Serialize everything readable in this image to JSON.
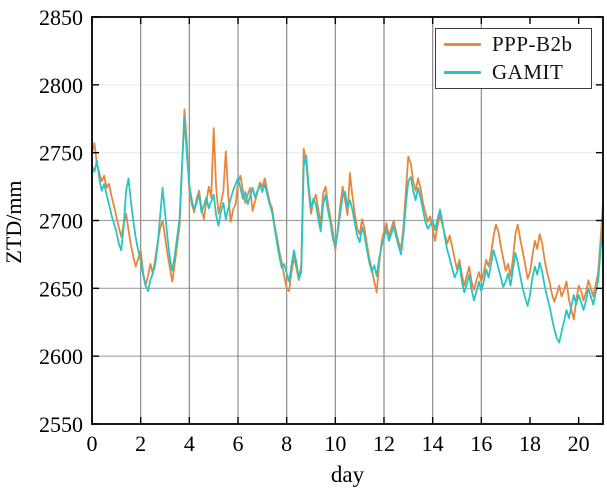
{
  "axes": {
    "xlabel": "day",
    "ylabel": "ZTD/mm",
    "x_ticks": [
      0,
      2,
      4,
      6,
      8,
      10,
      12,
      14,
      16,
      18,
      20
    ],
    "y_ticks": [
      2550,
      2600,
      2650,
      2700,
      2750,
      2800,
      2850
    ],
    "xlim": [
      0,
      21
    ],
    "ylim": [
      2550,
      2850
    ]
  },
  "grid": {
    "vertical_at_days": [
      2,
      4,
      6,
      8,
      10,
      12,
      14,
      16
    ],
    "horizontal_dark_at": [
      2600,
      2650,
      2700
    ],
    "horizontal_light_at": [
      2750,
      2800
    ],
    "vertical_color": "#8c8c8c",
    "horizontal_dark_color": "#a3a3a3",
    "horizontal_light_color": "#ebebeb"
  },
  "legend": {
    "position": "top-right",
    "entries": [
      {
        "label": "PPP-B2b",
        "color": "#E8873C"
      },
      {
        "label": "GAMIT",
        "color": "#2BC4C4"
      }
    ]
  },
  "chart_data": {
    "type": "line",
    "title": "",
    "xlabel": "day",
    "ylabel": "ZTD/mm",
    "xlim": [
      0,
      21
    ],
    "ylim": [
      2550,
      2850
    ],
    "grid": "on",
    "legend_position": "top-right",
    "x_start": 0,
    "x_step": 0.1,
    "series": [
      {
        "name": "PPP-B2b",
        "color": "#E8873C",
        "values": [
          2750,
          2757,
          2742,
          2735,
          2729,
          2733,
          2724,
          2727,
          2718,
          2711,
          2703,
          2695,
          2688,
          2697,
          2705,
          2693,
          2682,
          2673,
          2666,
          2672,
          2678,
          2662,
          2652,
          2659,
          2668,
          2661,
          2672,
          2684,
          2694,
          2700,
          2688,
          2676,
          2665,
          2655,
          2668,
          2682,
          2696,
          2738,
          2782,
          2757,
          2722,
          2712,
          2706,
          2716,
          2722,
          2709,
          2701,
          2714,
          2725,
          2717,
          2768,
          2725,
          2705,
          2713,
          2722,
          2751,
          2718,
          2699,
          2708,
          2712,
          2728,
          2733,
          2722,
          2713,
          2719,
          2724,
          2707,
          2714,
          2721,
          2728,
          2725,
          2731,
          2722,
          2714,
          2709,
          2697,
          2688,
          2677,
          2669,
          2659,
          2650,
          2648,
          2662,
          2673,
          2665,
          2656,
          2668,
          2753,
          2743,
          2722,
          2705,
          2714,
          2719,
          2708,
          2697,
          2720,
          2725,
          2712,
          2702,
          2691,
          2678,
          2694,
          2710,
          2725,
          2715,
          2704,
          2735,
          2718,
          2705,
          2694,
          2690,
          2701,
          2694,
          2682,
          2672,
          2664,
          2655,
          2647,
          2668,
          2684,
          2692,
          2698,
          2688,
          2694,
          2700,
          2691,
          2684,
          2679,
          2696,
          2722,
          2747,
          2742,
          2729,
          2722,
          2731,
          2724,
          2713,
          2706,
          2699,
          2703,
          2694,
          2685,
          2696,
          2704,
          2697,
          2690,
          2683,
          2689,
          2681,
          2672,
          2664,
          2671,
          2660,
          2652,
          2659,
          2666,
          2655,
          2649,
          2656,
          2662,
          2655,
          2662,
          2671,
          2666,
          2676,
          2688,
          2697,
          2692,
          2681,
          2672,
          2663,
          2668,
          2659,
          2672,
          2690,
          2697,
          2686,
          2677,
          2668,
          2657,
          2662,
          2674,
          2685,
          2679,
          2690,
          2683,
          2671,
          2662,
          2655,
          2646,
          2640,
          2646,
          2652,
          2644,
          2649,
          2655,
          2642,
          2634,
          2627,
          2641,
          2652,
          2648,
          2641,
          2647,
          2656,
          2650,
          2644,
          2653,
          2661,
          2686,
          2712
        ]
      },
      {
        "name": "GAMIT",
        "color": "#2BC4C4",
        "values": [
          2740,
          2736,
          2744,
          2731,
          2722,
          2727,
          2719,
          2712,
          2704,
          2698,
          2692,
          2683,
          2678,
          2695,
          2722,
          2731,
          2714,
          2699,
          2687,
          2678,
          2670,
          2660,
          2652,
          2648,
          2656,
          2661,
          2668,
          2682,
          2703,
          2724,
          2706,
          2688,
          2672,
          2663,
          2674,
          2688,
          2702,
          2740,
          2776,
          2748,
          2726,
          2715,
          2708,
          2713,
          2719,
          2706,
          2711,
          2717,
          2709,
          2714,
          2719,
          2704,
          2696,
          2707,
          2713,
          2701,
          2709,
          2716,
          2722,
          2727,
          2731,
          2724,
          2716,
          2721,
          2712,
          2718,
          2724,
          2717,
          2722,
          2726,
          2721,
          2727,
          2719,
          2712,
          2706,
          2695,
          2684,
          2673,
          2665,
          2668,
          2661,
          2655,
          2667,
          2678,
          2669,
          2657,
          2662,
          2740,
          2748,
          2726,
          2709,
          2716,
          2712,
          2701,
          2692,
          2712,
          2719,
          2707,
          2698,
          2686,
          2681,
          2692,
          2705,
          2718,
          2721,
          2709,
          2715,
          2708,
          2698,
          2689,
          2684,
          2695,
          2689,
          2678,
          2669,
          2662,
          2667,
          2659,
          2672,
          2681,
          2687,
          2694,
          2685,
          2690,
          2696,
          2688,
          2681,
          2675,
          2690,
          2712,
          2729,
          2732,
          2722,
          2715,
          2724,
          2717,
          2708,
          2699,
          2694,
          2697,
          2700,
          2693,
          2701,
          2708,
          2699,
          2688,
          2678,
          2672,
          2665,
          2658,
          2662,
          2668,
          2655,
          2647,
          2653,
          2660,
          2649,
          2641,
          2648,
          2655,
          2648,
          2655,
          2664,
          2658,
          2668,
          2678,
          2672,
          2665,
          2658,
          2651,
          2655,
          2661,
          2652,
          2664,
          2676,
          2669,
          2659,
          2650,
          2643,
          2637,
          2645,
          2658,
          2666,
          2660,
          2669,
          2662,
          2652,
          2644,
          2637,
          2628,
          2620,
          2613,
          2610,
          2618,
          2626,
          2634,
          2628,
          2637,
          2645,
          2638,
          2645,
          2640,
          2634,
          2641,
          2650,
          2644,
          2638,
          2647,
          2655,
          2678,
          2698
        ]
      }
    ]
  }
}
